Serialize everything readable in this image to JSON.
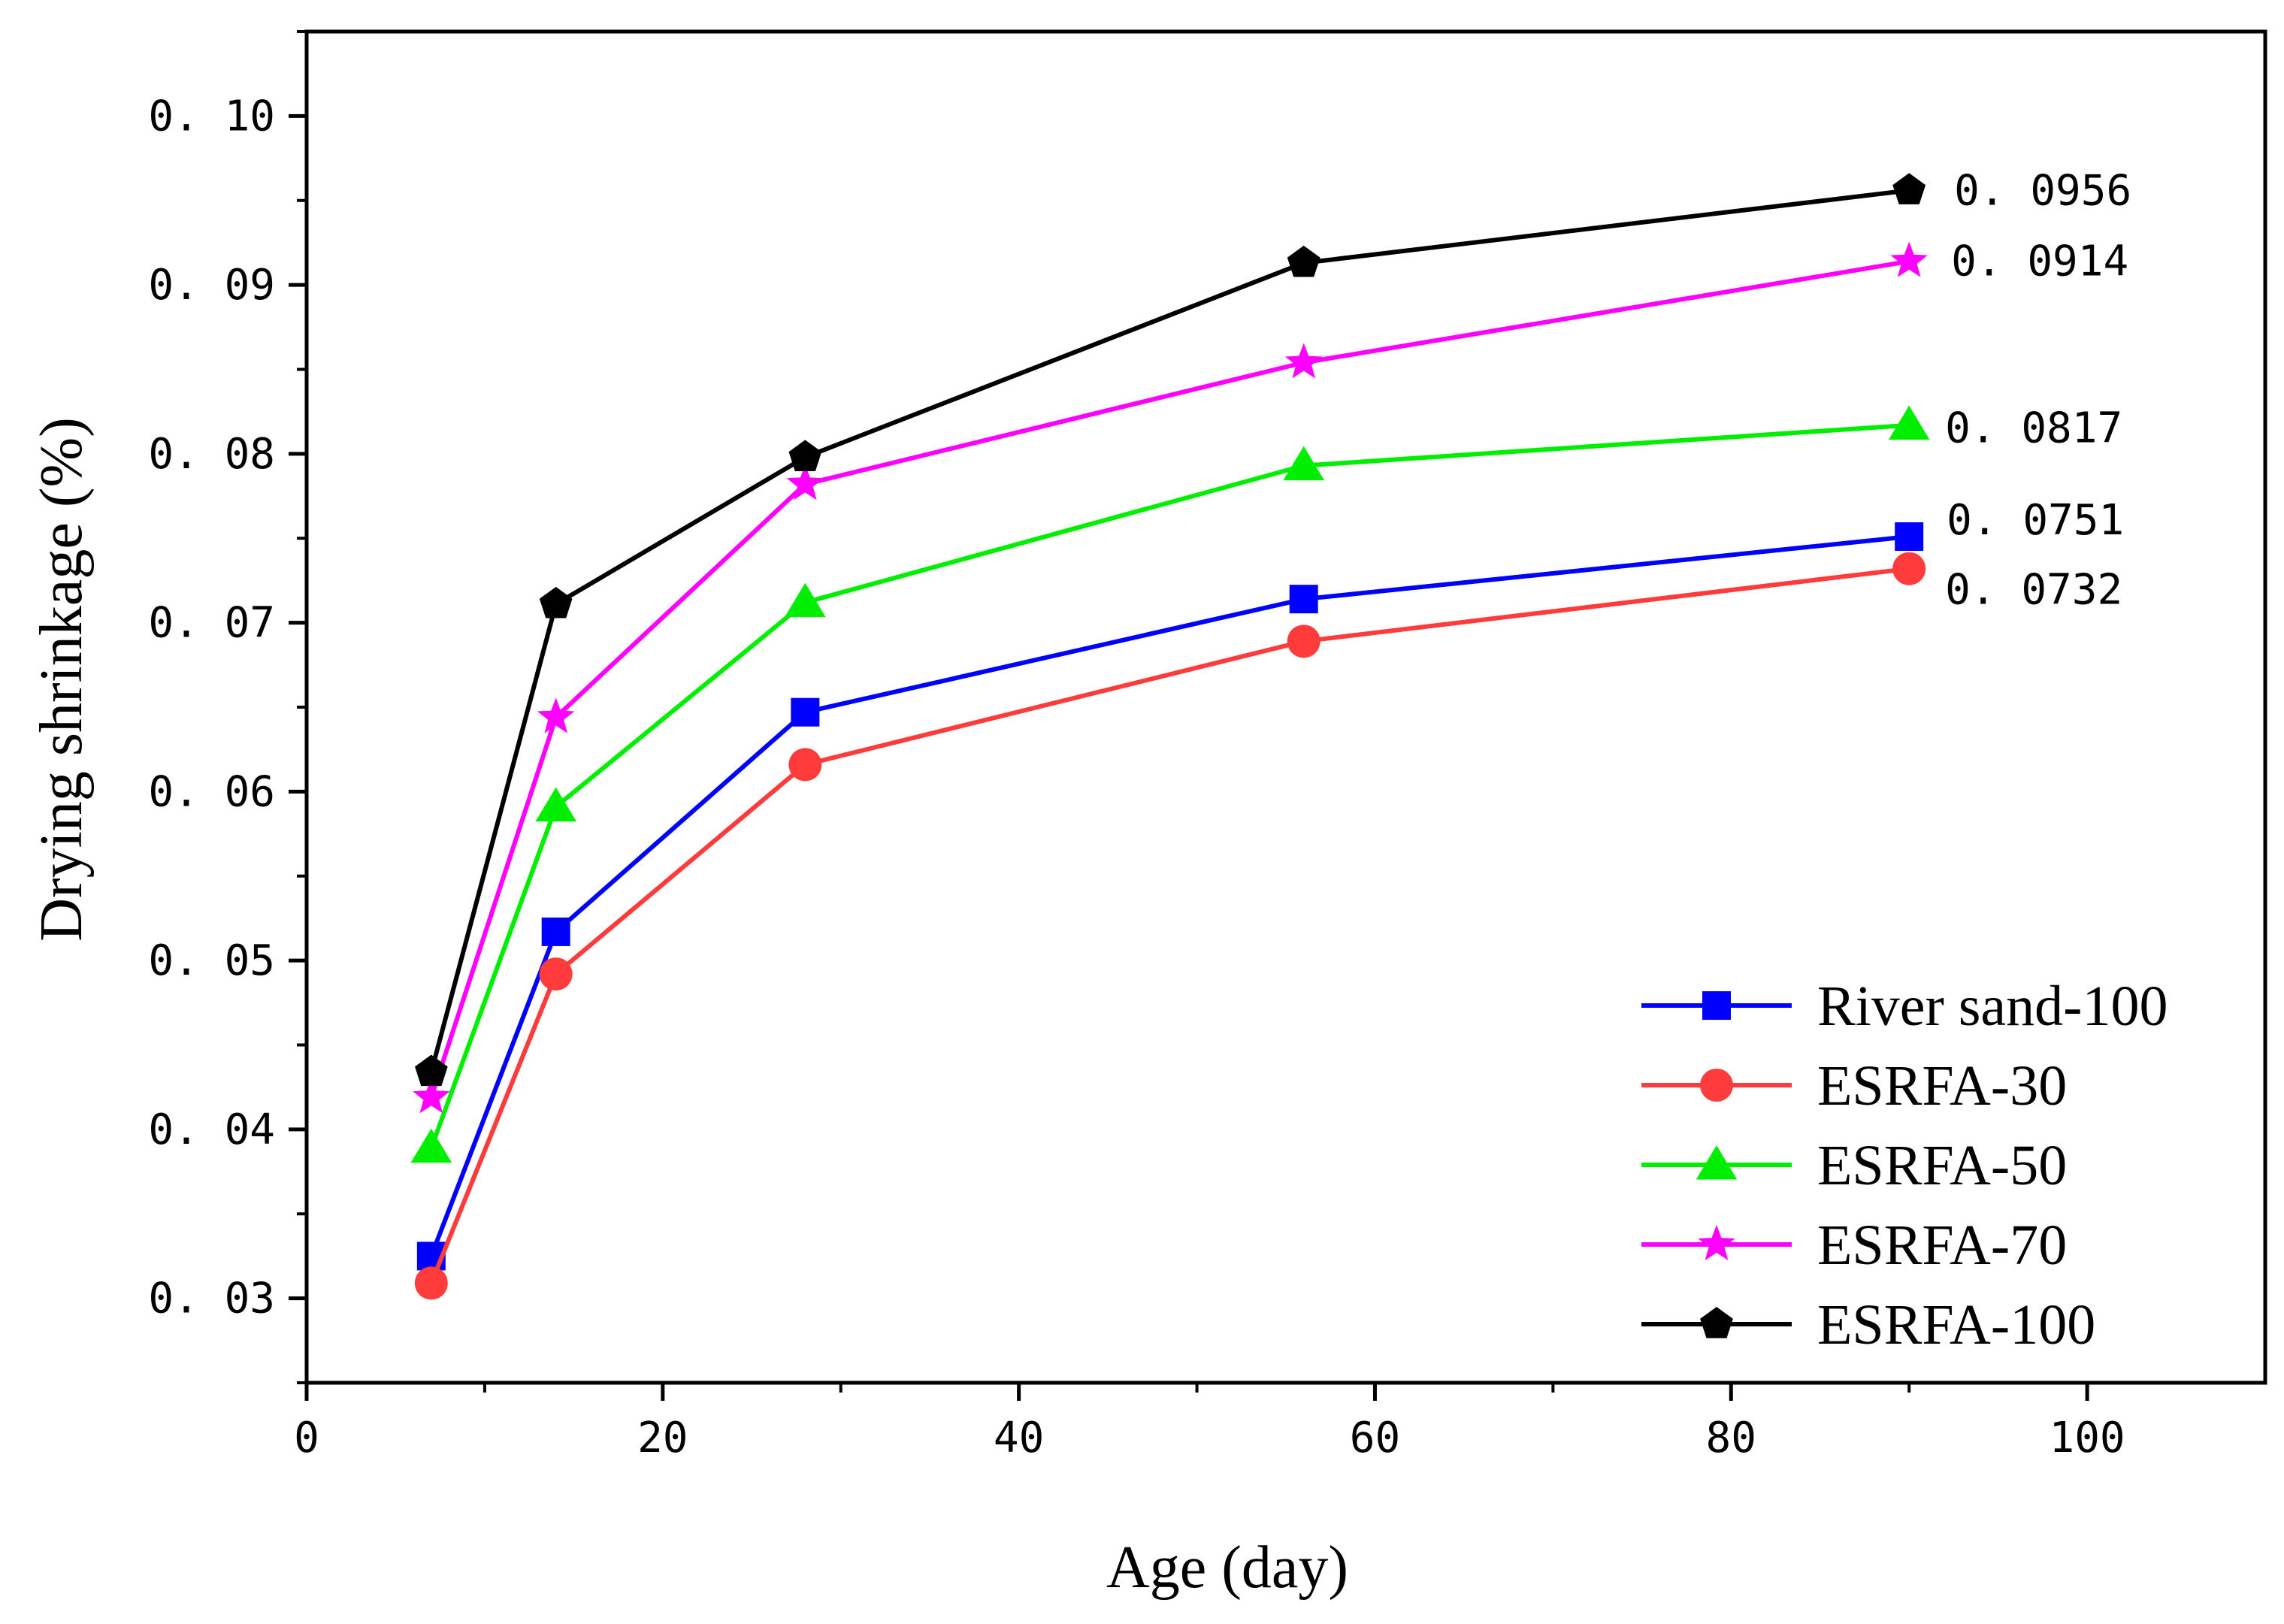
{
  "chart_data": {
    "type": "line",
    "title": "",
    "xlabel": "Age (day)",
    "ylabel": "Drying shrinkage (%)",
    "xlim": [
      0,
      110
    ],
    "ylim": [
      0.025,
      0.105
    ],
    "xticks": [
      0,
      20,
      40,
      60,
      80,
      100
    ],
    "xtick_labels": [
      "0",
      "20",
      "40",
      "60",
      "80",
      "100"
    ],
    "yticks": [
      0.03,
      0.04,
      0.05,
      0.06,
      0.07,
      0.08,
      0.09,
      0.1
    ],
    "ytick_labels": [
      "0. 03",
      "0. 04",
      "0. 05",
      "0. 06",
      "0. 07",
      "0. 08",
      "0. 09",
      "0. 10"
    ],
    "grid": false,
    "legend_position": "bottom-right",
    "x": [
      7,
      14,
      28,
      56,
      90
    ],
    "series": [
      {
        "name": "River sand-100",
        "color": "#0000ff",
        "marker": "square",
        "values": [
          0.0325,
          0.0517,
          0.0647,
          0.0714,
          0.0751
        ]
      },
      {
        "name": "ESRFA-30",
        "color": "#ff3b3b",
        "marker": "circle",
        "values": [
          0.0309,
          0.0492,
          0.0616,
          0.0689,
          0.0732
        ]
      },
      {
        "name": "ESRFA-50",
        "color": "#00ee00",
        "marker": "triangle",
        "values": [
          0.0389,
          0.0591,
          0.0712,
          0.0793,
          0.0817
        ]
      },
      {
        "name": "ESRFA-70",
        "color": "#ff00ff",
        "marker": "star",
        "values": [
          0.0419,
          0.0644,
          0.0782,
          0.0854,
          0.0914
        ]
      },
      {
        "name": "ESRFA-100",
        "color": "#000000",
        "marker": "pentagon",
        "values": [
          0.0434,
          0.0711,
          0.0798,
          0.0913,
          0.0956
        ]
      }
    ],
    "annotations": [
      {
        "text": "0. 0956",
        "series": "ESRFA-100"
      },
      {
        "text": "0. 0914",
        "series": "ESRFA-70"
      },
      {
        "text": "0. 0817",
        "series": "ESRFA-50"
      },
      {
        "text": "0. 0751",
        "series": "River sand-100"
      },
      {
        "text": "0. 0732",
        "series": "ESRFA-30"
      }
    ]
  }
}
